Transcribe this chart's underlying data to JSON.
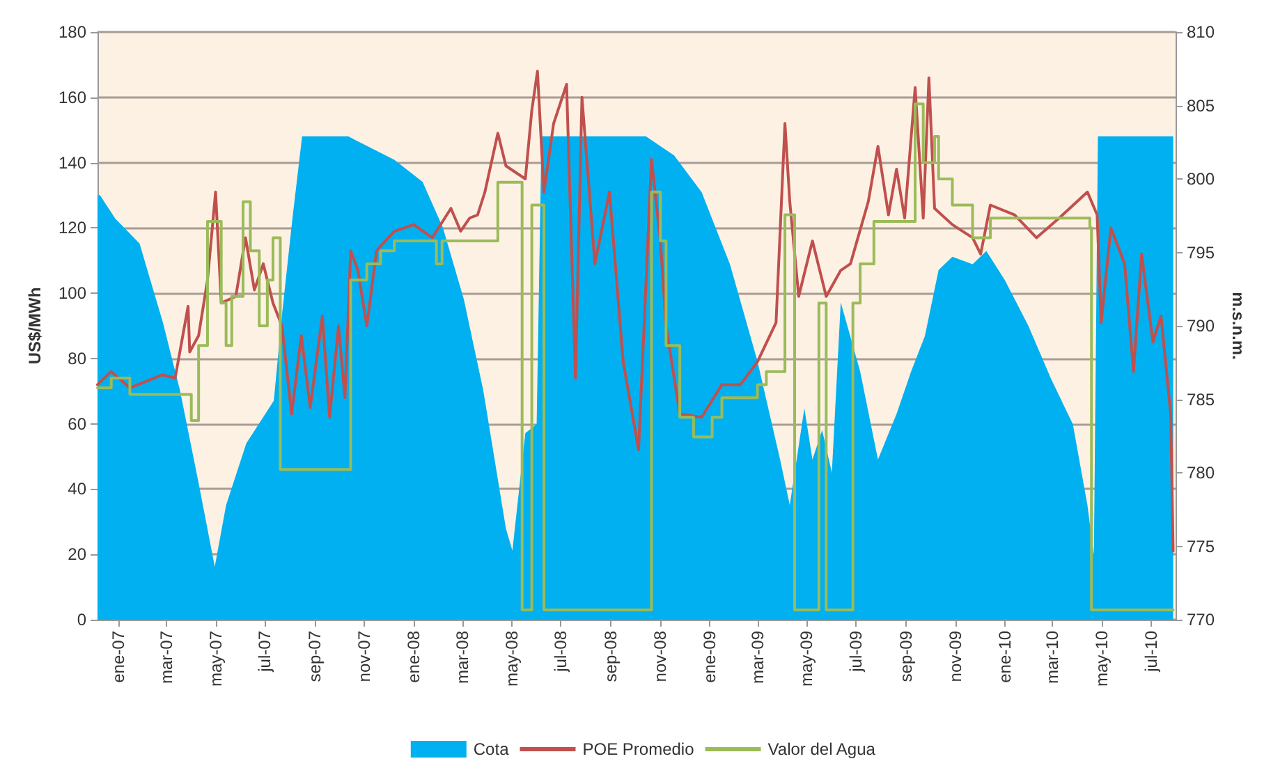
{
  "chart_data": {
    "type": "line",
    "ylabel": "US$/MWh",
    "y2label": "m.s.n.m.",
    "xlim": [
      "2006-12-06",
      "2010-07-31"
    ],
    "xticks": [
      {
        "value": "2007-01-01",
        "label": "ene-07"
      },
      {
        "value": "2007-03-01",
        "label": "mar-07"
      },
      {
        "value": "2007-05-01",
        "label": "may-07"
      },
      {
        "value": "2007-07-01",
        "label": "jul-07"
      },
      {
        "value": "2007-09-01",
        "label": "sep-07"
      },
      {
        "value": "2007-11-01",
        "label": "nov-07"
      },
      {
        "value": "2008-01-01",
        "label": "ene-08"
      },
      {
        "value": "2008-03-01",
        "label": "mar-08"
      },
      {
        "value": "2008-05-01",
        "label": "may-08"
      },
      {
        "value": "2008-07-01",
        "label": "jul-08"
      },
      {
        "value": "2008-09-01",
        "label": "sep-08"
      },
      {
        "value": "2008-11-01",
        "label": "nov-08"
      },
      {
        "value": "2009-01-01",
        "label": "ene-09"
      },
      {
        "value": "2009-03-01",
        "label": "mar-09"
      },
      {
        "value": "2009-05-01",
        "label": "may-09"
      },
      {
        "value": "2009-07-01",
        "label": "jul-09"
      },
      {
        "value": "2009-09-01",
        "label": "sep-09"
      },
      {
        "value": "2009-11-01",
        "label": "nov-09"
      },
      {
        "value": "2010-01-01",
        "label": "ene-10"
      },
      {
        "value": "2010-03-01",
        "label": "mar-10"
      },
      {
        "value": "2010-05-01",
        "label": "may-10"
      },
      {
        "value": "2010-07-01",
        "label": "jul-10"
      }
    ],
    "ylim": [
      0,
      180
    ],
    "yticks": [
      0,
      20,
      40,
      60,
      80,
      100,
      120,
      140,
      160,
      180
    ],
    "y2lim": [
      770,
      810
    ],
    "y2ticks": [
      770,
      775,
      780,
      785,
      790,
      795,
      800,
      805,
      810
    ],
    "grid": "y",
    "legend": "bottom",
    "marker": "none",
    "series": [
      {
        "name": "Cota",
        "type": "area",
        "axis": "y2",
        "color": "#00b0f0",
        "x": [
          "2006-12-06",
          "2006-12-09",
          "2006-12-28",
          "2007-01-27",
          "2007-02-25",
          "2007-03-18",
          "2007-04-10",
          "2007-04-30",
          "2007-05-14",
          "2007-06-08",
          "2007-07-12",
          "2007-07-22",
          "2007-08-04",
          "2007-08-16",
          "2007-10-12",
          "2007-12-08",
          "2008-01-12",
          "2008-02-06",
          "2008-03-03",
          "2008-03-27",
          "2008-04-24",
          "2008-05-02",
          "2008-05-18",
          "2008-06-01",
          "2008-06-07",
          "2008-06-22",
          "2008-10-14",
          "2008-11-18",
          "2008-12-22",
          "2009-01-26",
          "2009-03-01",
          "2009-03-29",
          "2009-04-10",
          "2009-04-28",
          "2009-05-08",
          "2009-05-20",
          "2009-06-01",
          "2009-06-12",
          "2009-07-06",
          "2009-07-28",
          "2009-08-20",
          "2009-09-07",
          "2009-09-24",
          "2009-10-11",
          "2009-10-28",
          "2009-11-22",
          "2009-12-09",
          "2010-01-01",
          "2010-01-30",
          "2010-02-27",
          "2010-03-26",
          "2010-04-13",
          "2010-04-21",
          "2010-04-26",
          "2010-07-28"
        ],
        "values": [
          798.9,
          798.9,
          797.3,
          795.6,
          790.2,
          785.6,
          779.3,
          773.6,
          777.8,
          782.0,
          784.9,
          790.7,
          797.3,
          802.9,
          802.9,
          801.3,
          799.8,
          796.7,
          791.8,
          785.6,
          776.2,
          774.7,
          782.7,
          783.3,
          802.9,
          802.9,
          802.9,
          801.6,
          799.1,
          794.2,
          787.6,
          780.9,
          777.8,
          784.4,
          780.9,
          782.9,
          780.0,
          791.6,
          786.9,
          780.9,
          784.0,
          786.9,
          789.3,
          793.8,
          794.7,
          794.2,
          795.1,
          793.1,
          790.0,
          786.4,
          783.3,
          777.8,
          774.4,
          802.9,
          802.9
        ]
      },
      {
        "name": "POE Promedio",
        "color": "#c0504d",
        "x": [
          "2006-12-06",
          "2006-12-23",
          "2007-01-15",
          "2007-02-24",
          "2007-03-12",
          "2007-03-28",
          "2007-03-30",
          "2007-04-10",
          "2007-04-21",
          "2007-05-01",
          "2007-05-08",
          "2007-05-26",
          "2007-06-07",
          "2007-06-18",
          "2007-06-29",
          "2007-07-11",
          "2007-07-22",
          "2007-08-03",
          "2007-08-15",
          "2007-08-26",
          "2007-09-10",
          "2007-09-19",
          "2007-09-30",
          "2007-10-08",
          "2007-10-15",
          "2007-10-24",
          "2007-11-04",
          "2007-11-16",
          "2007-12-08",
          "2008-01-01",
          "2008-01-24",
          "2008-02-16",
          "2008-02-28",
          "2008-03-10",
          "2008-03-20",
          "2008-03-29",
          "2008-04-14",
          "2008-04-24",
          "2008-05-18",
          "2008-05-26",
          "2008-06-02",
          "2008-06-10",
          "2008-06-22",
          "2008-07-08",
          "2008-07-19",
          "2008-07-27",
          "2008-08-12",
          "2008-08-30",
          "2008-09-16",
          "2008-10-05",
          "2008-10-21",
          "2008-11-01",
          "2008-11-08",
          "2008-11-25",
          "2008-12-22",
          "2009-01-16",
          "2009-02-08",
          "2009-03-01",
          "2009-03-24",
          "2009-04-04",
          "2009-04-10",
          "2009-04-21",
          "2009-05-08",
          "2009-05-25",
          "2009-06-12",
          "2009-06-24",
          "2009-07-16",
          "2009-07-28",
          "2009-08-10",
          "2009-08-20",
          "2009-08-30",
          "2009-09-12",
          "2009-09-22",
          "2009-09-29",
          "2009-10-06",
          "2009-10-28",
          "2009-11-22",
          "2009-12-02",
          "2009-12-14",
          "2010-01-13",
          "2010-02-09",
          "2010-03-09",
          "2010-04-13",
          "2010-04-25",
          "2010-04-30",
          "2010-05-12",
          "2010-05-29",
          "2010-06-09",
          "2010-06-19",
          "2010-07-03",
          "2010-07-13",
          "2010-07-25",
          "2010-07-28"
        ],
        "values": [
          72,
          76,
          71,
          75,
          74,
          96,
          82,
          87,
          104,
          131,
          97,
          99,
          117,
          101,
          109,
          97,
          90,
          63,
          87,
          65,
          93,
          62,
          90,
          68,
          113,
          107,
          90,
          113,
          119,
          121,
          117,
          126,
          119,
          123,
          124,
          131,
          149,
          139,
          135,
          156,
          168,
          131,
          152,
          164,
          74,
          160,
          109,
          131,
          79,
          52,
          141,
          116,
          90,
          63,
          62,
          72,
          72,
          79,
          91,
          152,
          128,
          99,
          116,
          99,
          107,
          109,
          128,
          145,
          124,
          138,
          123,
          163,
          123,
          166,
          126,
          121,
          117,
          112,
          127,
          124,
          117,
          123,
          131,
          124,
          91,
          120,
          109,
          76,
          112,
          85,
          93,
          63,
          21
        ]
      },
      {
        "name": "Valor del Agua",
        "type": "step",
        "color": "#9bbb59",
        "x": [
          "2006-12-06",
          "2006-12-23",
          "2007-01-15",
          "2007-04-01",
          "2007-04-10",
          "2007-04-21",
          "2007-05-08",
          "2007-05-14",
          "2007-05-21",
          "2007-06-04",
          "2007-06-13",
          "2007-06-24",
          "2007-07-04",
          "2007-07-11",
          "2007-07-20",
          "2007-10-15",
          "2007-11-04",
          "2007-11-21",
          "2007-12-08",
          "2008-01-29",
          "2008-02-05",
          "2008-04-14",
          "2008-05-14",
          "2008-05-26",
          "2008-06-10",
          "2008-10-21",
          "2008-11-01",
          "2008-11-08",
          "2008-11-25",
          "2008-12-12",
          "2009-01-04",
          "2009-01-16",
          "2009-03-01",
          "2009-03-12",
          "2009-04-04",
          "2009-04-16",
          "2009-05-16",
          "2009-05-25",
          "2009-06-27",
          "2009-07-06",
          "2009-07-23",
          "2009-09-12",
          "2009-09-22",
          "2009-10-06",
          "2009-10-11",
          "2009-10-28",
          "2009-11-22",
          "2009-12-14",
          "2010-04-16",
          "2010-04-18",
          "2010-07-28"
        ],
        "values": [
          71,
          74,
          69,
          61,
          84,
          122,
          97,
          84,
          99,
          128,
          113,
          90,
          104,
          117,
          46,
          104,
          109,
          113,
          116,
          109,
          116,
          134,
          3,
          127,
          3,
          131,
          116,
          84,
          62,
          56,
          62,
          68,
          72,
          76,
          124,
          3,
          97,
          3,
          97,
          109,
          122,
          158,
          140,
          148,
          135,
          127,
          117,
          123,
          120,
          3,
          3
        ]
      }
    ]
  }
}
